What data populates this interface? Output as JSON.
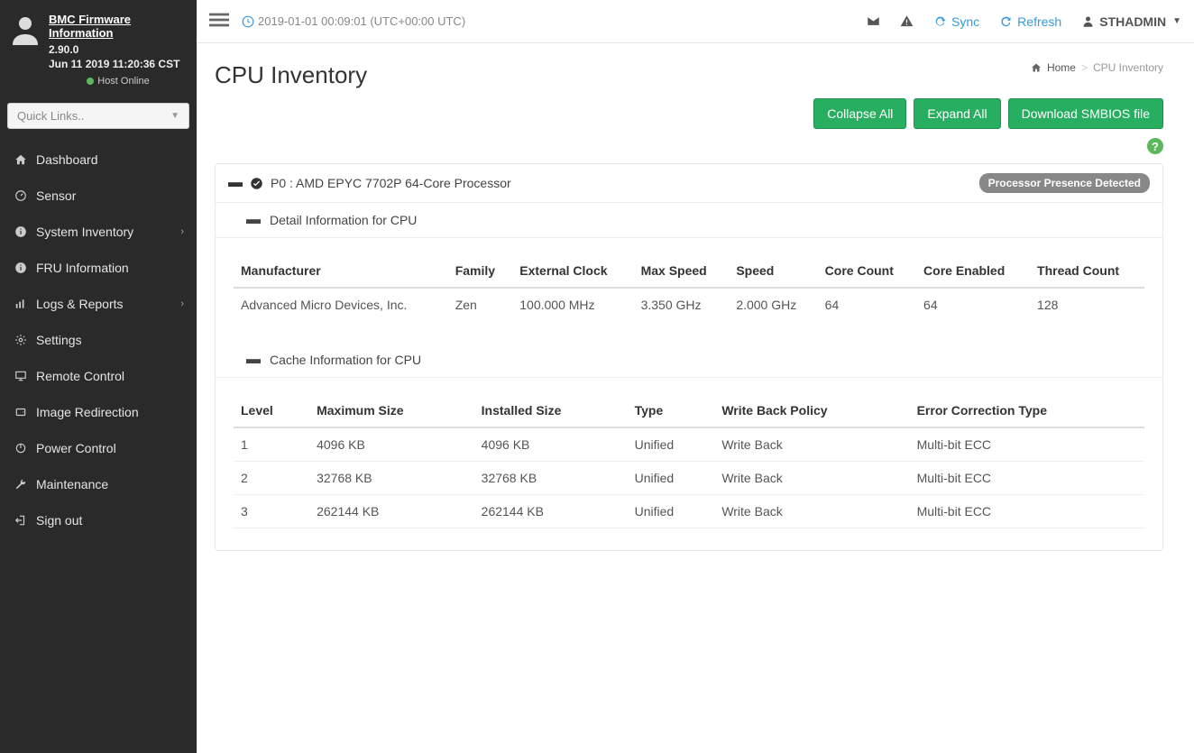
{
  "sidebar": {
    "firmware": {
      "title": "BMC Firmware Information",
      "version": "2.90.0",
      "build": "Jun 11 2019 11:20:36 CST",
      "host_status": "Host Online"
    },
    "quicklinks_placeholder": "Quick Links..",
    "nav": [
      {
        "label": "Dashboard",
        "icon": "home"
      },
      {
        "label": "Sensor",
        "icon": "gauge"
      },
      {
        "label": "System Inventory",
        "icon": "info",
        "chevron": true
      },
      {
        "label": "FRU Information",
        "icon": "info"
      },
      {
        "label": "Logs & Reports",
        "icon": "bars",
        "chevron": true
      },
      {
        "label": "Settings",
        "icon": "gear"
      },
      {
        "label": "Remote Control",
        "icon": "monitor"
      },
      {
        "label": "Image Redirection",
        "icon": "disk"
      },
      {
        "label": "Power Control",
        "icon": "power"
      },
      {
        "label": "Maintenance",
        "icon": "wrench"
      },
      {
        "label": "Sign out",
        "icon": "signout"
      }
    ]
  },
  "topbar": {
    "timestamp": "2019-01-01 00:09:01 (UTC+00:00 UTC)",
    "sync": "Sync",
    "refresh": "Refresh",
    "user": "STHADMIN"
  },
  "page": {
    "title": "CPU Inventory",
    "breadcrumb": {
      "home": "Home",
      "current": "CPU Inventory"
    },
    "actions": {
      "collapse": "Collapse All",
      "expand": "Expand All",
      "download": "Download SMBIOS file"
    }
  },
  "cpu": {
    "header": "P0 : AMD EPYC 7702P 64-Core Processor",
    "badge": "Processor Presence Detected",
    "detail_header": "Detail Information for CPU",
    "cache_header": "Cache Information for CPU",
    "detail_columns": [
      "Manufacturer",
      "Family",
      "External Clock",
      "Max Speed",
      "Speed",
      "Core Count",
      "Core Enabled",
      "Thread Count"
    ],
    "detail_row": [
      "Advanced Micro Devices, Inc.",
      "Zen",
      "100.000 MHz",
      "3.350 GHz",
      "2.000 GHz",
      "64",
      "64",
      "128"
    ],
    "cache_columns": [
      "Level",
      "Maximum Size",
      "Installed Size",
      "Type",
      "Write Back Policy",
      "Error Correction Type"
    ],
    "cache_rows": [
      [
        "1",
        "4096 KB",
        "4096 KB",
        "Unified",
        "Write Back",
        "Multi-bit ECC"
      ],
      [
        "2",
        "32768 KB",
        "32768 KB",
        "Unified",
        "Write Back",
        "Multi-bit ECC"
      ],
      [
        "3",
        "262144 KB",
        "262144 KB",
        "Unified",
        "Write Back",
        "Multi-bit ECC"
      ]
    ]
  },
  "colors": {
    "sidebar_bg": "#2a2a2a",
    "accent_green": "#27ae60",
    "accent_blue": "#3a9ad9",
    "badge_bg": "#888888"
  }
}
